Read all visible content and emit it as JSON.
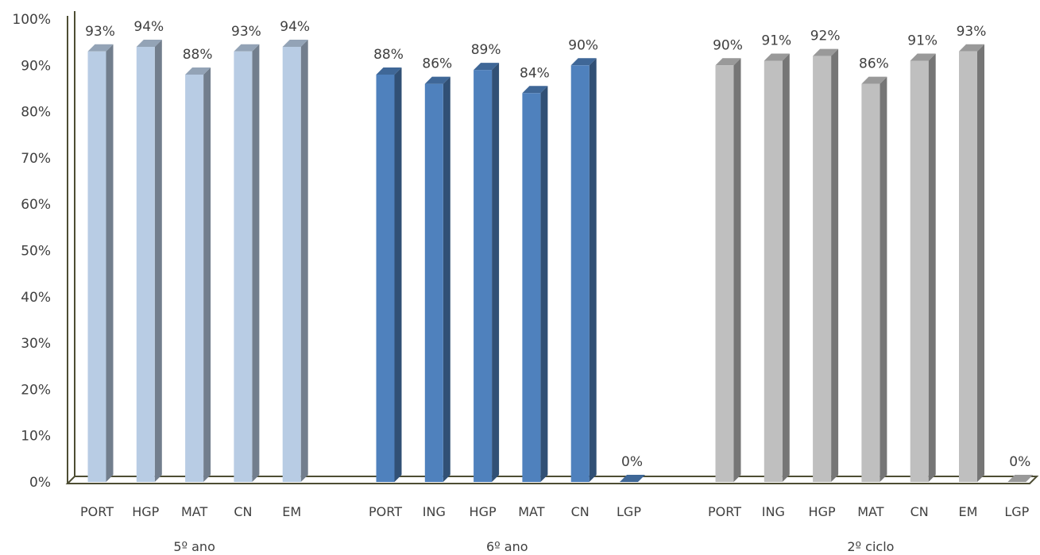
{
  "chart_data": {
    "type": "bar",
    "ylim": [
      0,
      100
    ],
    "yticks": [
      "0%",
      "10%",
      "20%",
      "30%",
      "40%",
      "50%",
      "60%",
      "70%",
      "80%",
      "90%",
      "100%"
    ],
    "groups": [
      {
        "name": "5º ano",
        "color": "#b8cce4",
        "categories": [
          "PORT",
          "HGP",
          "MAT",
          "CN",
          "EM"
        ],
        "values": [
          93,
          94,
          88,
          93,
          94
        ],
        "labels": [
          "93%",
          "94%",
          "88%",
          "93%",
          "94%"
        ]
      },
      {
        "name": "6º ano",
        "color": "#4f81bd",
        "categories": [
          "PORT",
          "ING",
          "HGP",
          "MAT",
          "CN",
          "LGP"
        ],
        "values": [
          88,
          86,
          89,
          84,
          90,
          0
        ],
        "labels": [
          "88%",
          "86%",
          "89%",
          "84%",
          "90%",
          "0%"
        ]
      },
      {
        "name": "2º ciclo",
        "color": "#bfbfbf",
        "categories": [
          "PORT",
          "ING",
          "HGP",
          "MAT",
          "CN",
          "EM",
          "LGP"
        ],
        "values": [
          90,
          91,
          92,
          86,
          91,
          93,
          0
        ],
        "labels": [
          "90%",
          "91%",
          "92%",
          "86%",
          "91%",
          "93%",
          "0%"
        ]
      }
    ],
    "grid": false,
    "legend": "none"
  }
}
